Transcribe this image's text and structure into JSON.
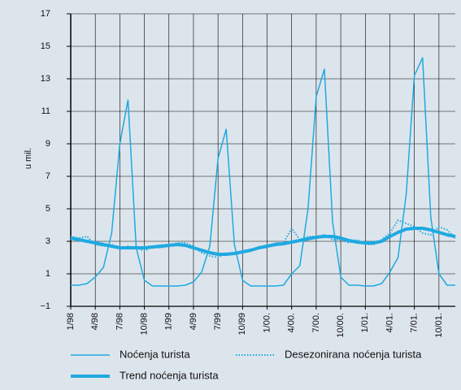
{
  "chart_data": {
    "type": "line",
    "y_label": "u mil.",
    "categories": [
      "1/98",
      null,
      null,
      "4/98",
      null,
      null,
      "7/98",
      null,
      null,
      "10/98",
      null,
      null,
      "1/99",
      null,
      null,
      "4/99",
      null,
      null,
      "7/99",
      null,
      null,
      "10/99",
      null,
      null,
      "1/00.",
      null,
      null,
      "4/00.",
      null,
      null,
      "7/00.",
      null,
      null,
      "10/00.",
      null,
      null,
      "1/01.",
      null,
      null,
      "4/01.",
      null,
      null,
      "7/01.",
      null,
      null,
      "10/01.",
      null,
      null
    ],
    "series": [
      {
        "name": "Noćenja turista",
        "color": "#1fa9e1",
        "style": "solid",
        "width": 1.5,
        "values": [
          0.3,
          0.3,
          0.4,
          0.8,
          1.4,
          3.5,
          9,
          11.7,
          2.6,
          0.6,
          0.25,
          0.25,
          0.25,
          0.25,
          0.3,
          0.5,
          1.1,
          2.7,
          8.1,
          9.9,
          2.8,
          0.6,
          0.25,
          0.25,
          0.25,
          0.25,
          0.3,
          1.0,
          1.5,
          5.0,
          11.9,
          13.6,
          4.2,
          0.8,
          0.3,
          0.3,
          0.25,
          0.25,
          0.4,
          1.1,
          2.0,
          5.9,
          13.2,
          14.3,
          4.5,
          1.0,
          0.3,
          0.3
        ]
      },
      {
        "name": "Desezonirana noćenja turista",
        "color": "#1fa9e1",
        "style": "dotted",
        "width": 2,
        "values": [
          3.3,
          3.2,
          3.3,
          2.8,
          2.7,
          2.8,
          2.5,
          2.7,
          2.6,
          2.4,
          2.7,
          2.6,
          2.7,
          2.9,
          2.9,
          2.7,
          2.3,
          2.1,
          2.0,
          2.3,
          2.2,
          2.4,
          2.5,
          2.6,
          2.6,
          2.9,
          2.9,
          3.8,
          3.1,
          3.3,
          3.3,
          3.4,
          3.1,
          3.1,
          2.9,
          3.1,
          2.8,
          2.8,
          3.1,
          3.5,
          4.3,
          4.1,
          3.9,
          3.5,
          3.4,
          3.9,
          3.7,
          3.2
        ]
      },
      {
        "name": "Trend noćenja turista",
        "color": "#1fa9e1",
        "style": "solid",
        "width": 4,
        "values": [
          3.2,
          3.1,
          3.0,
          2.9,
          2.8,
          2.7,
          2.6,
          2.6,
          2.6,
          2.6,
          2.65,
          2.7,
          2.75,
          2.8,
          2.75,
          2.6,
          2.45,
          2.3,
          2.2,
          2.2,
          2.25,
          2.35,
          2.45,
          2.6,
          2.7,
          2.8,
          2.85,
          2.95,
          3.05,
          3.15,
          3.25,
          3.3,
          3.3,
          3.2,
          3.05,
          2.95,
          2.9,
          2.9,
          3.0,
          3.3,
          3.55,
          3.75,
          3.8,
          3.8,
          3.7,
          3.55,
          3.4,
          3.3
        ]
      }
    ],
    "ylim": [
      -1,
      17
    ],
    "yticks": [
      {
        "value": -1,
        "label": "−1"
      },
      1,
      3,
      5,
      7,
      9,
      11,
      13,
      15,
      17
    ],
    "grid": true,
    "legend": "bottom"
  }
}
